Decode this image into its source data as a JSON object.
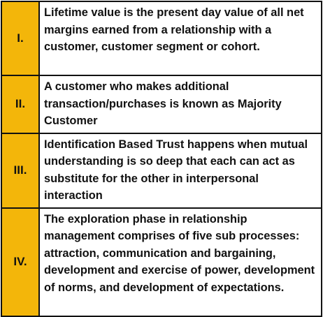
{
  "table": {
    "rows": [
      [
        "I.",
        "Lifetime value is the present day value of all net margins earned from a relationship with a customer, customer segment or cohort."
      ],
      [
        "II.",
        "A customer who makes additional transaction/purchases is known as Majority Customer"
      ],
      [
        "III.",
        "Identification Based Trust happens when mutual understanding is so deep that each can act as substitute for the other in interpersonal interaction"
      ],
      [
        "IV.",
        "The exploration phase in relationship management comprises of five sub processes: attraction, communication and bargaining, development and exercise of power, development of norms, and development of expectations."
      ]
    ]
  }
}
